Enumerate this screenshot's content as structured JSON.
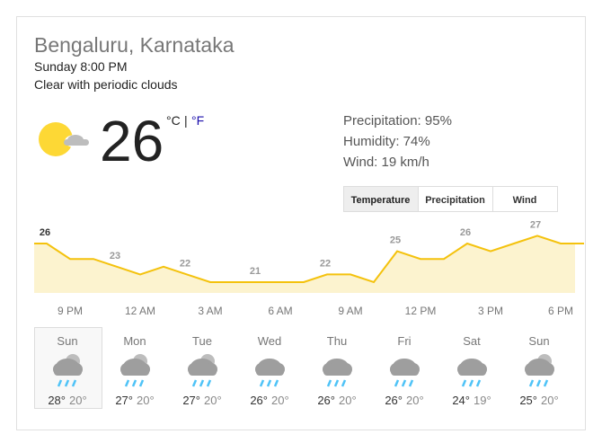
{
  "header": {
    "location": "Bengaluru, Karnataka",
    "time": "Sunday 8:00 PM",
    "condition": "Clear with periodic clouds"
  },
  "current": {
    "temperature": "26",
    "unit_c": "°C",
    "separator": "|",
    "unit_f": "°F",
    "precipitation": "Precipitation: 95%",
    "humidity": "Humidity: 74%",
    "wind": "Wind: 19 km/h"
  },
  "tabs": [
    "Temperature",
    "Precipitation",
    "Wind"
  ],
  "hourly": {
    "values": [
      26,
      24,
      24,
      23,
      22,
      23,
      22,
      21,
      21,
      21,
      21,
      21,
      22,
      22,
      21,
      25,
      24,
      24,
      26,
      25,
      26,
      27,
      26,
      26
    ],
    "value_labels": [
      "26",
      null,
      null,
      "23",
      null,
      null,
      "22",
      null,
      null,
      "21",
      null,
      null,
      "22",
      null,
      null,
      "25",
      null,
      null,
      "26",
      null,
      null,
      "27",
      null,
      null
    ],
    "times": [
      "9 PM",
      "12 AM",
      "3 AM",
      "6 AM",
      "9 AM",
      "12 PM",
      "3 PM",
      "6 PM"
    ]
  },
  "daily": [
    {
      "day": "Sun",
      "high": "28°",
      "low": "20°"
    },
    {
      "day": "Mon",
      "high": "27°",
      "low": "20°"
    },
    {
      "day": "Tue",
      "high": "27°",
      "low": "20°"
    },
    {
      "day": "Wed",
      "high": "26°",
      "low": "20°"
    },
    {
      "day": "Thu",
      "high": "26°",
      "low": "20°"
    },
    {
      "day": "Fri",
      "high": "26°",
      "low": "20°"
    },
    {
      "day": "Sat",
      "high": "24°",
      "low": "19°"
    },
    {
      "day": "Sun",
      "high": "25°",
      "low": "20°"
    }
  ]
}
